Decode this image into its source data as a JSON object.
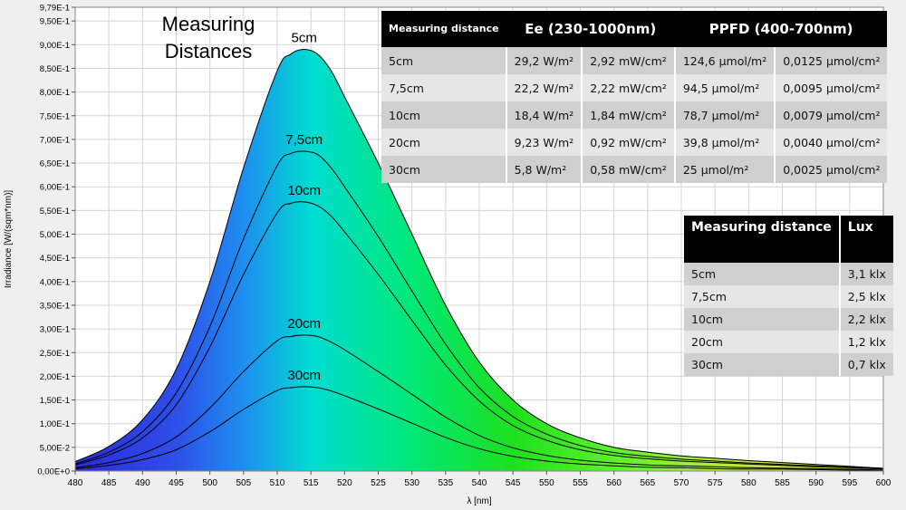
{
  "chart_data": {
    "type": "area",
    "title": "Measuring Distances",
    "xlabel": "λ [nm]",
    "ylabel": "Irradiance [W/(sqm*nm)]",
    "xlim": [
      480,
      600
    ],
    "ylim": [
      0,
      0.979
    ],
    "x_ticks": [
      "480",
      "485",
      "490",
      "495",
      "500",
      "505",
      "510",
      "515",
      "520",
      "525",
      "530",
      "535",
      "540",
      "545",
      "550",
      "555",
      "560",
      "565",
      "570",
      "575",
      "580",
      "585",
      "590",
      "595",
      "600"
    ],
    "y_ticks": [
      "0,00E+0",
      "5,00E-2",
      "1,00E-1",
      "1,50E-1",
      "2,00E-1",
      "2,50E-1",
      "3,00E-1",
      "3,50E-1",
      "4,00E-1",
      "4,50E-1",
      "5,00E-1",
      "5,50E-1",
      "6,00E-1",
      "6,50E-1",
      "7,00E-1",
      "7,50E-1",
      "8,00E-1",
      "8,50E-1",
      "9,00E-1",
      "9,50E-1",
      "9,79E-1"
    ],
    "x": [
      480,
      485,
      490,
      495,
      500,
      505,
      510,
      512,
      514,
      516,
      518,
      520,
      525,
      530,
      535,
      540,
      545,
      550,
      555,
      560,
      565,
      570,
      575,
      580,
      585,
      590,
      595,
      600
    ],
    "series": [
      {
        "name": "5cm",
        "label": "5cm",
        "values": [
          0.02,
          0.052,
          0.108,
          0.215,
          0.4,
          0.64,
          0.845,
          0.88,
          0.89,
          0.88,
          0.845,
          0.79,
          0.65,
          0.5,
          0.35,
          0.23,
          0.15,
          0.1,
          0.07,
          0.05,
          0.04,
          0.032,
          0.027,
          0.022,
          0.018,
          0.014,
          0.01,
          0.006
        ]
      },
      {
        "name": "7,5cm",
        "label": "7,5cm",
        "values": [
          0.015,
          0.04,
          0.083,
          0.165,
          0.305,
          0.49,
          0.645,
          0.67,
          0.675,
          0.668,
          0.64,
          0.6,
          0.495,
          0.38,
          0.268,
          0.176,
          0.115,
          0.078,
          0.054,
          0.039,
          0.031,
          0.025,
          0.021,
          0.017,
          0.014,
          0.011,
          0.008,
          0.005
        ]
      },
      {
        "name": "10cm",
        "label": "10cm",
        "values": [
          0.013,
          0.034,
          0.07,
          0.14,
          0.262,
          0.415,
          0.545,
          0.565,
          0.568,
          0.56,
          0.538,
          0.505,
          0.415,
          0.318,
          0.224,
          0.148,
          0.096,
          0.065,
          0.045,
          0.033,
          0.026,
          0.021,
          0.018,
          0.015,
          0.012,
          0.009,
          0.007,
          0.004
        ]
      },
      {
        "name": "20cm",
        "label": "20cm",
        "values": [
          0.007,
          0.018,
          0.037,
          0.072,
          0.133,
          0.21,
          0.275,
          0.284,
          0.287,
          0.284,
          0.272,
          0.256,
          0.21,
          0.162,
          0.114,
          0.075,
          0.049,
          0.033,
          0.023,
          0.017,
          0.013,
          0.011,
          0.009,
          0.007,
          0.006,
          0.005,
          0.004,
          0.002
        ]
      },
      {
        "name": "30cm",
        "label": "30cm",
        "values": [
          0.005,
          0.012,
          0.024,
          0.045,
          0.083,
          0.13,
          0.17,
          0.176,
          0.178,
          0.176,
          0.169,
          0.159,
          0.131,
          0.101,
          0.071,
          0.047,
          0.031,
          0.021,
          0.015,
          0.011,
          0.008,
          0.007,
          0.005,
          0.004,
          0.004,
          0.003,
          0.002,
          0.001
        ]
      }
    ],
    "colors": {
      "plot_bg": "#ffffff",
      "frame_bg": "#efefef",
      "grid": "#d4d4d4",
      "line": "#000000",
      "spectrum": [
        {
          "nm": 480,
          "color": "#2b2bd8"
        },
        {
          "nm": 495,
          "color": "#2e4fe8"
        },
        {
          "nm": 505,
          "color": "#1e8ef0"
        },
        {
          "nm": 515,
          "color": "#00dcd2"
        },
        {
          "nm": 530,
          "color": "#00e878"
        },
        {
          "nm": 545,
          "color": "#1ee01e"
        },
        {
          "nm": 560,
          "color": "#5ef02a"
        },
        {
          "nm": 575,
          "color": "#b4ea3c"
        },
        {
          "nm": 600,
          "color": "#e2d23a"
        }
      ]
    }
  },
  "ee_table": {
    "headers": {
      "distance": "Measuring distance",
      "ee": "Ee  (230-1000nm)",
      "ppfd": "PPFD (400-700nm)"
    },
    "rows": [
      {
        "distance": "5cm",
        "ee_w": "29,2 W/m²",
        "ee_mw": "2,92 mW/cm²",
        "ppfd_m": "124,6 µmol/m²",
        "ppfd_cm": "0,0125 µmol/cm²"
      },
      {
        "distance": "7,5cm",
        "ee_w": "22,2 W/m²",
        "ee_mw": "2,22 mW/cm²",
        "ppfd_m": "94,5 µmol/m²",
        "ppfd_cm": "0,0095 µmol/cm²"
      },
      {
        "distance": "10cm",
        "ee_w": "18,4 W/m²",
        "ee_mw": "1,84 mW/cm²",
        "ppfd_m": "78,7 µmol/m²",
        "ppfd_cm": "0,0079 µmol/cm²"
      },
      {
        "distance": "20cm",
        "ee_w": "9,23 W/m²",
        "ee_mw": "0,92 mW/cm²",
        "ppfd_m": "39,8 µmol/m²",
        "ppfd_cm": "0,0040 µmol/cm²"
      },
      {
        "distance": "30cm",
        "ee_w": "5,8 W/m²",
        "ee_mw": "0,58 mW/cm²",
        "ppfd_m": "25 µmol/m²",
        "ppfd_cm": "0,0025 µmol/cm²"
      }
    ]
  },
  "lux_table": {
    "headers": {
      "distance": "Measuring distance",
      "lux": "Lux"
    },
    "rows": [
      {
        "distance": "5cm",
        "lux": "3,1 klx"
      },
      {
        "distance": "7,5cm",
        "lux": "2,5 klx"
      },
      {
        "distance": "10cm",
        "lux": "2,2 klx"
      },
      {
        "distance": "20cm",
        "lux": "1,2 klx"
      },
      {
        "distance": "30cm",
        "lux": "0,7 klx"
      }
    ]
  }
}
